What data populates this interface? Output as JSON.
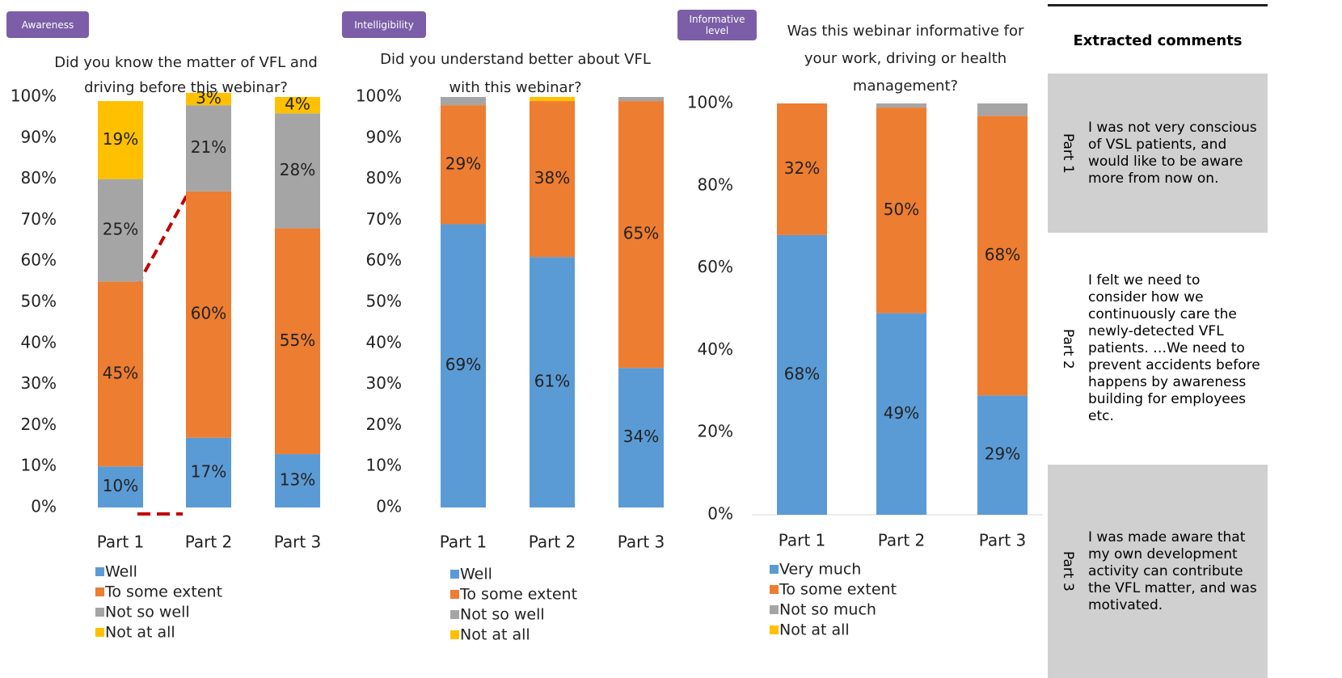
{
  "chart_data": [
    {
      "type": "bar",
      "stacked": true,
      "badge": "Awareness",
      "title": "Did you know the matter of VFL and driving before this webinar?",
      "categories": [
        "Part 1",
        "Part 2",
        "Part 3"
      ],
      "ylim": [
        0,
        100
      ],
      "yticks": [
        {
          "value": 0,
          "label": "0%"
        },
        {
          "value": 10,
          "label": "10%"
        },
        {
          "value": 20,
          "label": "20%"
        },
        {
          "value": 30,
          "label": "30%"
        },
        {
          "value": 40,
          "label": "40%"
        },
        {
          "value": 50,
          "label": "50%"
        },
        {
          "value": 60,
          "label": "60%"
        },
        {
          "value": 70,
          "label": "70%"
        },
        {
          "value": 80,
          "label": "80%"
        },
        {
          "value": 90,
          "label": "90%"
        },
        {
          "value": 100,
          "label": "100%"
        }
      ],
      "series": [
        {
          "name": "Well",
          "color": "#5b9bd5",
          "values": [
            10,
            17,
            13
          ],
          "value_labels": [
            "10%",
            "17%",
            "13%"
          ]
        },
        {
          "name": "To some extent",
          "color": "#ed7d31",
          "values": [
            45,
            60,
            55
          ],
          "value_labels": [
            "45%",
            "60%",
            "55%"
          ]
        },
        {
          "name": "Not so well",
          "color": "#a5a5a5",
          "values": [
            25,
            21,
            28
          ],
          "value_labels": [
            "25%",
            "21%",
            "28%"
          ]
        },
        {
          "name": "Not at all",
          "color": "#ffc000",
          "values": [
            19,
            3,
            4
          ],
          "value_labels": [
            "19%",
            "3%",
            "4%"
          ]
        }
      ]
    },
    {
      "type": "bar",
      "stacked": true,
      "badge": "Intelligibility",
      "title": "Did you understand better about VFL with this webinar?",
      "categories": [
        "Part 1",
        "Part 2",
        "Part 3"
      ],
      "ylim": [
        0,
        100
      ],
      "yticks": [
        {
          "value": 0,
          "label": "0%"
        },
        {
          "value": 10,
          "label": "10%"
        },
        {
          "value": 20,
          "label": "20%"
        },
        {
          "value": 30,
          "label": "30%"
        },
        {
          "value": 40,
          "label": "40%"
        },
        {
          "value": 50,
          "label": "50%"
        },
        {
          "value": 60,
          "label": "60%"
        },
        {
          "value": 70,
          "label": "70%"
        },
        {
          "value": 80,
          "label": "80%"
        },
        {
          "value": 90,
          "label": "90%"
        },
        {
          "value": 100,
          "label": "100%"
        }
      ],
      "series": [
        {
          "name": "Well",
          "color": "#5b9bd5",
          "values": [
            69,
            61,
            34
          ],
          "value_labels": [
            "69%",
            "61%",
            "34%"
          ]
        },
        {
          "name": "To some extent",
          "color": "#ed7d31",
          "values": [
            29,
            38,
            65
          ],
          "value_labels": [
            "29%",
            "38%",
            "65%"
          ]
        },
        {
          "name": "Not so well",
          "color": "#a5a5a5",
          "values": [
            2,
            0,
            1
          ],
          "value_labels": [
            null,
            null,
            null
          ]
        },
        {
          "name": "Not at all",
          "color": "#ffc000",
          "values": [
            0,
            1,
            0
          ],
          "value_labels": [
            null,
            null,
            null
          ]
        }
      ]
    },
    {
      "type": "bar",
      "stacked": true,
      "badge": "Informative level",
      "title": "Was this webinar informative for your work, driving or health management?",
      "categories": [
        "Part 1",
        "Part 2",
        "Part 3"
      ],
      "ylim": [
        0,
        100
      ],
      "yticks": [
        {
          "value": 0,
          "label": "0%"
        },
        {
          "value": 20,
          "label": "20%"
        },
        {
          "value": 40,
          "label": "40%"
        },
        {
          "value": 60,
          "label": "60%"
        },
        {
          "value": 80,
          "label": "80%"
        },
        {
          "value": 100,
          "label": "100%"
        }
      ],
      "series": [
        {
          "name": "Very much",
          "color": "#5b9bd5",
          "values": [
            68,
            49,
            29
          ],
          "value_labels": [
            "68%",
            "49%",
            "29%"
          ]
        },
        {
          "name": "To some extent",
          "color": "#ed7d31",
          "values": [
            32,
            50,
            68
          ],
          "value_labels": [
            "32%",
            "50%",
            "68%"
          ]
        },
        {
          "name": "Not so much",
          "color": "#a5a5a5",
          "values": [
            0,
            1,
            3
          ],
          "value_labels": [
            null,
            null,
            null
          ]
        },
        {
          "name": "Not at all",
          "color": "#ffc000",
          "values": [
            0,
            0,
            0
          ],
          "value_labels": [
            null,
            null,
            null
          ]
        }
      ]
    }
  ],
  "comments": {
    "title": "Extracted comments",
    "rows": [
      {
        "label": "Part 1",
        "text": "I was not very conscious of VSL patients, and would like to be aware more from now on."
      },
      {
        "label": "Part 2",
        "text": "I felt we need to consider how we continuously care the newly-detected VFL patients. …We need to prevent accidents before happens by awareness building for employees etc."
      },
      {
        "label": "Part 3",
        "text": "I was made aware that my own development activity can contribute the VFL matter, and was motivated."
      }
    ]
  }
}
